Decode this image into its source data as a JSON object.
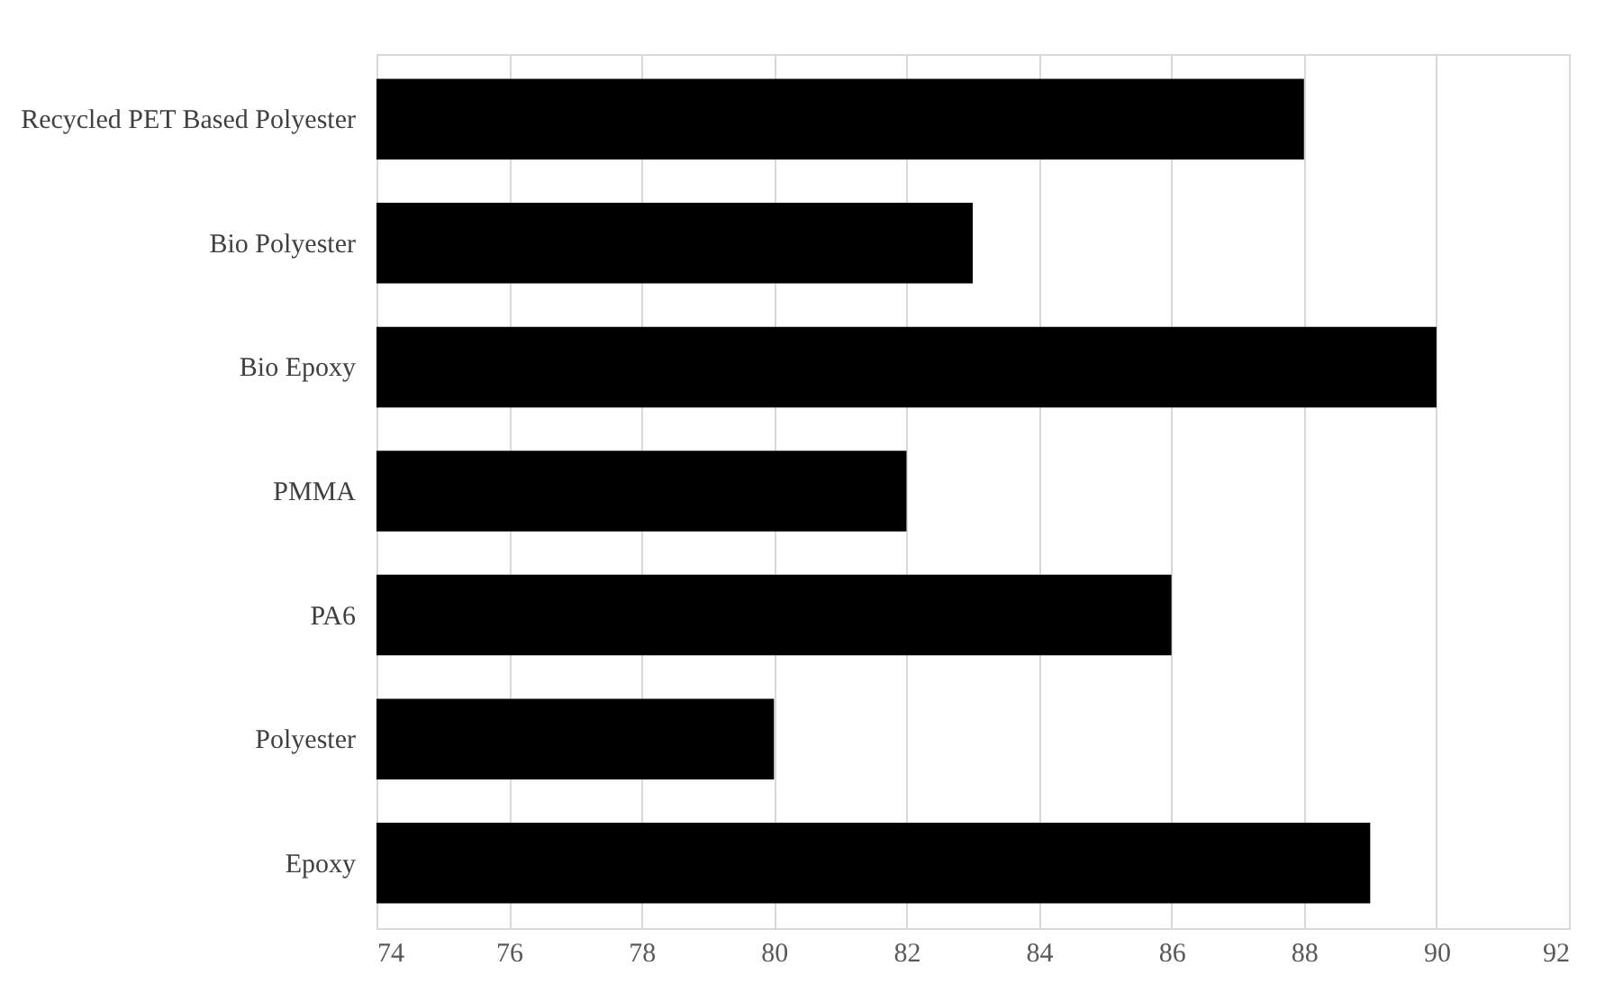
{
  "chart_data": {
    "type": "bar",
    "orientation": "horizontal",
    "categories": [
      "Recycled PET Based Polyester",
      "Bio Polyester",
      "Bio Epoxy",
      "PMMA",
      "PA6",
      "Polyester",
      "Epoxy"
    ],
    "values": [
      88,
      83,
      90,
      82,
      86,
      80,
      89
    ],
    "color": "#000000",
    "xlim": [
      74,
      92
    ],
    "xticks": [
      74,
      76,
      78,
      80,
      82,
      84,
      86,
      88,
      90,
      92
    ],
    "grid": "x"
  }
}
